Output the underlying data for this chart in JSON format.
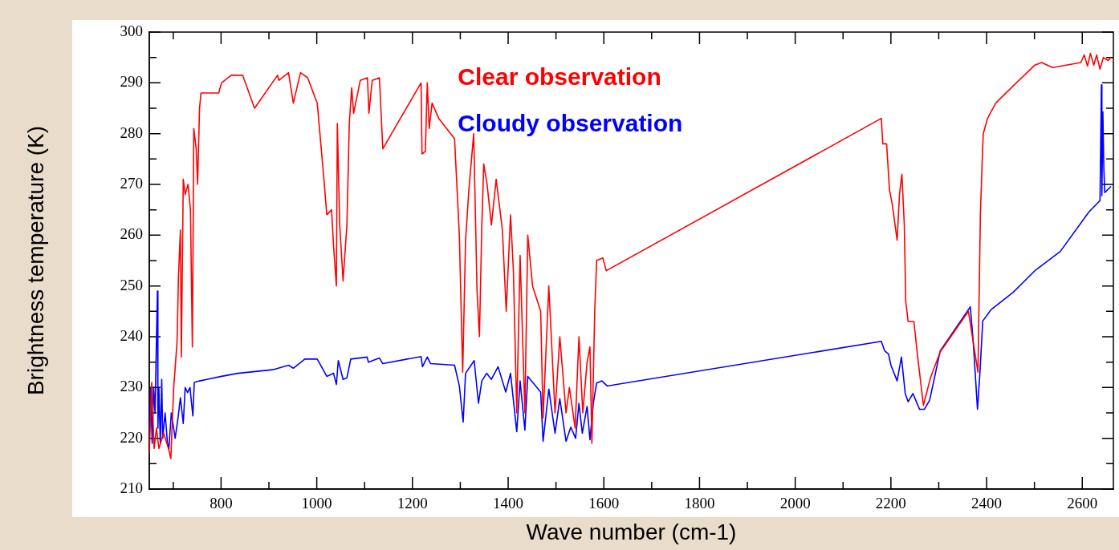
{
  "chart_data": {
    "type": "line",
    "xlabel": "Wave number (cm-1)",
    "ylabel": "Brightness temperature (K)",
    "legend": "top",
    "marker": "none",
    "xlim": [
      650,
      2665
    ],
    "ylim": [
      210,
      300
    ],
    "xticks": [
      {
        "value": 700,
        "label": null
      },
      800,
      {
        "value": 900,
        "label": null
      },
      1000,
      {
        "value": 1100,
        "label": null
      },
      1200,
      {
        "value": 1300,
        "label": null
      },
      1400,
      {
        "value": 1500,
        "label": null
      },
      1600,
      {
        "value": 1700,
        "label": null
      },
      1800,
      {
        "value": 1900,
        "label": null
      },
      2000,
      {
        "value": 2100,
        "label": null
      },
      2200,
      {
        "value": 2300,
        "label": null
      },
      2400,
      {
        "value": 2500,
        "label": null
      },
      2600
    ],
    "yticks": [
      210,
      {
        "value": 215,
        "label": null
      },
      220,
      {
        "value": 225,
        "label": null
      },
      230,
      {
        "value": 235,
        "label": null
      },
      240,
      {
        "value": 245,
        "label": null
      },
      250,
      {
        "value": 255,
        "label": null
      },
      260,
      {
        "value": 265,
        "label": null
      },
      270,
      {
        "value": 275,
        "label": null
      },
      280,
      {
        "value": 285,
        "label": null
      },
      290,
      {
        "value": 295,
        "label": null
      },
      300
    ],
    "series": [
      {
        "name": "Clear observation",
        "color": "#ff0000",
        "x": [
          650,
          655,
          660,
          665,
          670,
          680,
          690,
          695,
          701,
          708,
          711,
          715,
          717,
          721,
          725,
          731,
          736,
          740,
          743,
          748,
          751,
          755,
          758,
          795,
          801,
          821,
          845,
          870,
          918,
          921,
          941,
          951,
          966,
          981,
          1001,
          1015,
          1021,
          1031,
          1035,
          1041,
          1043,
          1048,
          1055,
          1063,
          1068,
          1073,
          1077,
          1091,
          1106,
          1109,
          1116,
          1131,
          1138,
          1218,
          1220,
          1227,
          1231,
          1235,
          1241,
          1255,
          1288,
          1298,
          1305,
          1311,
          1318,
          1328,
          1335,
          1340,
          1345,
          1349,
          1356,
          1365,
          1375,
          1388,
          1396,
          1405,
          1411,
          1418,
          1425,
          1435,
          1441,
          1451,
          1468,
          1473,
          1485,
          1498,
          1508,
          1521,
          1528,
          1540,
          1548,
          1556,
          1565,
          1571,
          1575,
          1581,
          1585,
          1598,
          1605,
          2180,
          2183,
          2191,
          2197,
          2203,
          2213,
          2218,
          2223,
          2228,
          2231,
          2236,
          2248,
          2256,
          2268,
          2283,
          2303,
          2362,
          2382,
          2387,
          2391,
          2393,
          2402,
          2419,
          2462,
          2501,
          2515,
          2538,
          2597,
          2604,
          2611,
          2617,
          2624,
          2630,
          2637,
          2644,
          2654,
          2660
        ],
        "values": [
          217,
          231,
          218,
          222,
          218,
          221,
          218,
          216,
          230,
          239,
          252,
          261,
          236,
          271,
          268,
          270,
          265,
          238,
          281,
          277,
          270,
          285,
          288,
          288,
          290,
          291.5,
          291.5,
          285,
          291.5,
          290.5,
          292,
          286,
          292,
          291,
          286,
          271,
          264,
          265,
          258,
          250,
          282,
          262,
          251,
          262,
          282,
          289,
          284,
          290.5,
          291,
          284,
          290.5,
          291,
          277,
          290,
          276,
          276.5,
          290,
          281,
          286,
          283,
          279,
          260,
          233,
          259,
          269,
          280,
          249,
          240,
          262,
          274,
          270,
          262,
          271,
          261,
          245,
          264,
          253,
          225,
          256,
          225,
          260,
          250,
          245,
          224,
          250,
          225,
          240,
          225,
          230,
          222,
          240,
          225,
          235,
          238,
          219,
          245,
          255,
          255.5,
          253,
          283,
          278,
          278,
          269,
          266,
          259,
          268,
          272,
          262,
          247,
          243,
          243,
          236,
          226.5,
          232,
          237,
          245,
          233,
          264,
          275,
          280,
          283,
          286,
          290,
          293.5,
          294,
          293,
          294,
          295.5,
          293.3,
          295.8,
          293.5,
          295.5,
          292.7,
          295,
          294.4,
          295
        ]
      },
      {
        "name": "Cloudy observation",
        "color": "#0000ff",
        "x": [
          650,
          653,
          656,
          659,
          662,
          664,
          667,
          668,
          670,
          673,
          676,
          678,
          683,
          688,
          691,
          696,
          704,
          710,
          715,
          721,
          725,
          730,
          735,
          741,
          744,
          755,
          801,
          835,
          908,
          941,
          951,
          975,
          1001,
          1021,
          1035,
          1041,
          1045,
          1055,
          1063,
          1071,
          1105,
          1108,
          1131,
          1138,
          1218,
          1221,
          1231,
          1238,
          1288,
          1298,
          1306,
          1311,
          1329,
          1338,
          1345,
          1355,
          1365,
          1379,
          1395,
          1405,
          1418,
          1425,
          1435,
          1441,
          1468,
          1473,
          1485,
          1498,
          1508,
          1521,
          1531,
          1541,
          1548,
          1555,
          1565,
          1571,
          1578,
          1585,
          1596,
          1607,
          2180,
          2187,
          2195,
          2200,
          2213,
          2222,
          2230,
          2236,
          2246,
          2260,
          2270,
          2281,
          2303,
          2366,
          2372,
          2381,
          2386,
          2392,
          2409,
          2455,
          2502,
          2554,
          2614,
          2637,
          2640,
          2641,
          2643,
          2645,
          2647,
          2660
        ],
        "values": [
          220,
          230,
          219,
          230,
          225,
          235,
          249,
          222,
          230,
          219,
          231.6,
          220,
          225,
          219,
          218,
          225,
          220,
          224,
          228,
          222.9,
          230,
          229,
          230,
          224.4,
          231,
          231.3,
          232.2,
          232.8,
          233.5,
          234.4,
          233.8,
          235.6,
          235.6,
          232.2,
          232.8,
          230.6,
          235.3,
          231.6,
          231.9,
          235.6,
          236,
          235,
          235.8,
          234.7,
          236.1,
          234.1,
          236,
          234.7,
          234.4,
          230.3,
          223.2,
          232.8,
          235.3,
          226.9,
          231.3,
          232.8,
          231.6,
          234.1,
          229.1,
          232.8,
          221.3,
          231.3,
          221.6,
          232.2,
          229.1,
          219.4,
          229.7,
          221,
          227.8,
          219.4,
          222.2,
          220,
          226.9,
          221,
          226.3,
          219.7,
          226.9,
          230.9,
          231.3,
          230.3,
          239.1,
          237.2,
          236.6,
          234.4,
          231.3,
          236,
          228.8,
          227.2,
          228.8,
          225.7,
          225.7,
          227.5,
          237.2,
          245.9,
          239.1,
          225.7,
          232.8,
          243.1,
          245.3,
          248.7,
          253.1,
          256.8,
          264.6,
          266.8,
          289.6,
          267.8,
          284.3,
          273.4,
          268.4,
          269.6
        ]
      }
    ]
  }
}
